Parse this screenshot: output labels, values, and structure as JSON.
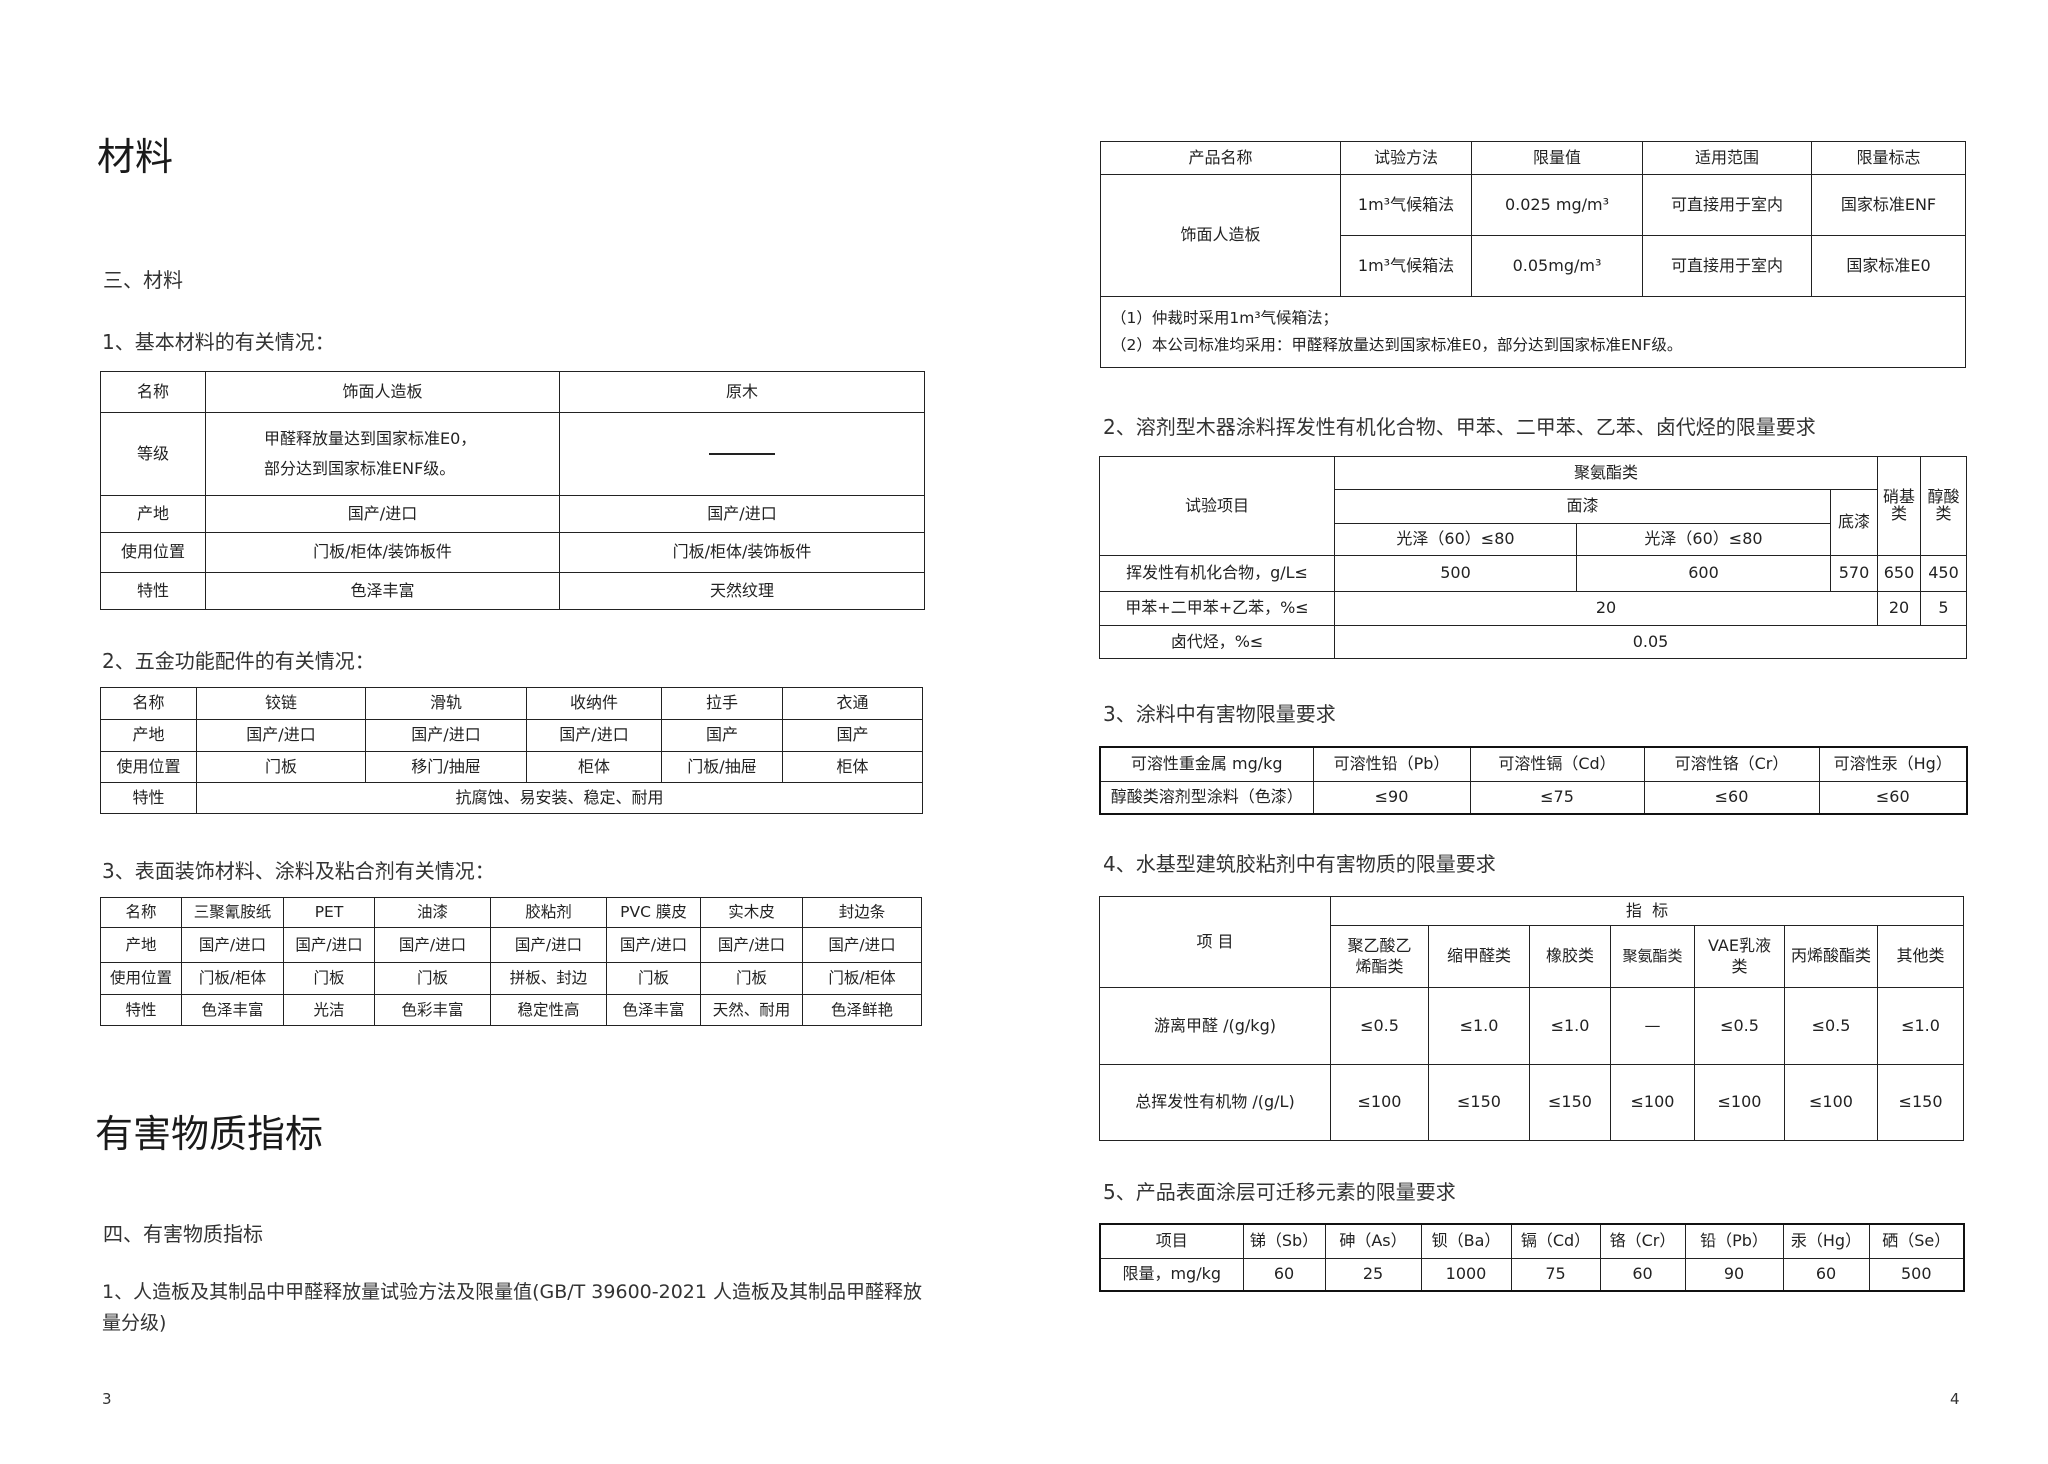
{
  "left": {
    "title": "材料",
    "section3": "三、材料",
    "sub1": "1、基本材料的有关情况：",
    "table1": {
      "rows": [
        [
          "名称",
          "饰面人造板",
          "原木"
        ],
        [
          "等级",
          "甲醛释放量达到国家标准E0，",
          "部分达到国家标准ENF级。"
        ],
        [
          "产地",
          "国产/进口",
          "国产/进口"
        ],
        [
          "使用位置",
          "门板/柜体/装饰板件",
          "门板/柜体/装饰板件"
        ],
        [
          "特性",
          "色泽丰富",
          "天然纹理"
        ]
      ]
    },
    "sub2": "2、五金功能配件的有关情况：",
    "table2": {
      "rows": [
        [
          "名称",
          "铰链",
          "滑轨",
          "收纳件",
          "拉手",
          "衣通"
        ],
        [
          "产地",
          "国产/进口",
          "国产/进口",
          "国产/进口",
          "国产",
          "国产"
        ],
        [
          "使用位置",
          "门板",
          "移门/抽屉",
          "柜体",
          "门板/抽屉",
          "柜体"
        ],
        [
          "特性",
          "抗腐蚀、易安装、稳定、耐用"
        ]
      ]
    },
    "sub3": "3、表面装饰材料、涂料及粘合剂有关情况：",
    "table3": {
      "rows": [
        [
          "名称",
          "三聚氰胺纸",
          "PET",
          "油漆",
          "胶粘剂",
          "PVC 膜皮",
          "实木皮",
          "封边条"
        ],
        [
          "产地",
          "国产/进口",
          "国产/进口",
          "国产/进口",
          "国产/进口",
          "国产/进口",
          "国产/进口",
          "国产/进口"
        ],
        [
          "使用位置",
          "门板/柜体",
          "门板",
          "门板",
          "拼板、封边",
          "门板",
          "门板",
          "门板/柜体"
        ],
        [
          "特性",
          "色泽丰富",
          "光洁",
          "色彩丰富",
          "稳定性高",
          "色泽丰富",
          "天然、耐用",
          "色泽鲜艳"
        ]
      ]
    },
    "title2": "有害物质指标",
    "section4": "四、有害物质指标",
    "para1": "1、人造板及其制品中甲醛释放量试验方法及限量值(GB/T 39600-2021  人造板及其制品甲醛释放量分级)",
    "page_number": "3"
  },
  "right": {
    "tableA": {
      "header": [
        "产品名称",
        "试验方法",
        "限量值",
        "适用范围",
        "限量标志"
      ],
      "product": "饰面人造板",
      "rows": [
        [
          "1m³气候箱法",
          "0.025 mg/m³",
          "可直接用于室内",
          "国家标准ENF"
        ],
        [
          "1m³气候箱法",
          "0.05mg/m³",
          "可直接用于室内",
          "国家标准E0"
        ]
      ],
      "notes": [
        "（1）仲裁时采用1m³气候箱法；",
        "（2）本公司标准均采用：甲醛释放量达到国家标准E0，部分达到国家标准ENF级。"
      ]
    },
    "sub2": "2、溶剂型木器涂料挥发性有机化合物、甲苯、二甲苯、乙苯、卤代烃的限量要求",
    "tableB": {
      "test_item": "试验项目",
      "pu": "聚氨酯类",
      "nitro": "硝基类",
      "alkyd": "醇酸类",
      "topcoat": "面漆",
      "primer": "底漆",
      "gloss1": "光泽（60）≤80",
      "gloss2": "光泽（60）≤80",
      "voc": [
        "挥发性有机化合物，g/L≤",
        "500",
        "600",
        "570",
        "650",
        "450"
      ],
      "benzene": [
        "甲苯+二甲苯+乙苯，%≤",
        "20",
        "20",
        "5"
      ],
      "halo": [
        "卤代烃，%≤",
        "0.05"
      ]
    },
    "sub3": "3、涂料中有害物限量要求",
    "tableC": {
      "header": [
        "可溶性重金属 mg/kg",
        "可溶性铅（Pb）",
        "可溶性镉（Cd）",
        "可溶性铬（Cr）",
        "可溶性汞（Hg）"
      ],
      "row": [
        "醇酸类溶剂型涂料（色漆）",
        "≤90",
        "≤75",
        "≤60",
        "≤60"
      ]
    },
    "sub4": "4、水基型建筑胶粘剂中有害物质的限量要求",
    "tableD": {
      "item": "项 目",
      "indicator": "指  标",
      "header": [
        "聚乙酸乙烯酯类",
        "缩甲醛类",
        "橡胶类",
        "聚氨酯类",
        "VAE乳液类",
        "丙烯酸酯类",
        "其他类"
      ],
      "rows": [
        [
          "游离甲醛 /(g/kg)",
          "≤0.5",
          "≤1.0",
          "≤1.0",
          "—",
          "≤0.5",
          "≤0.5",
          "≤1.0"
        ],
        [
          "总挥发性有机物 /(g/L)",
          "≤100",
          "≤150",
          "≤150",
          "≤100",
          "≤100",
          "≤100",
          "≤150"
        ]
      ]
    },
    "sub5": "5、产品表面涂层可迁移元素的限量要求",
    "tableE": {
      "header": [
        "项目",
        "锑（Sb）",
        "砷（As）",
        "钡（Ba）",
        "镉（Cd）",
        "铬（Cr）",
        "铅（Pb）",
        "汞（Hg）",
        "硒（Se）"
      ],
      "row": [
        "限量，mg/kg",
        "60",
        "25",
        "1000",
        "75",
        "60",
        "90",
        "60",
        "500"
      ]
    },
    "page_number": "4"
  }
}
